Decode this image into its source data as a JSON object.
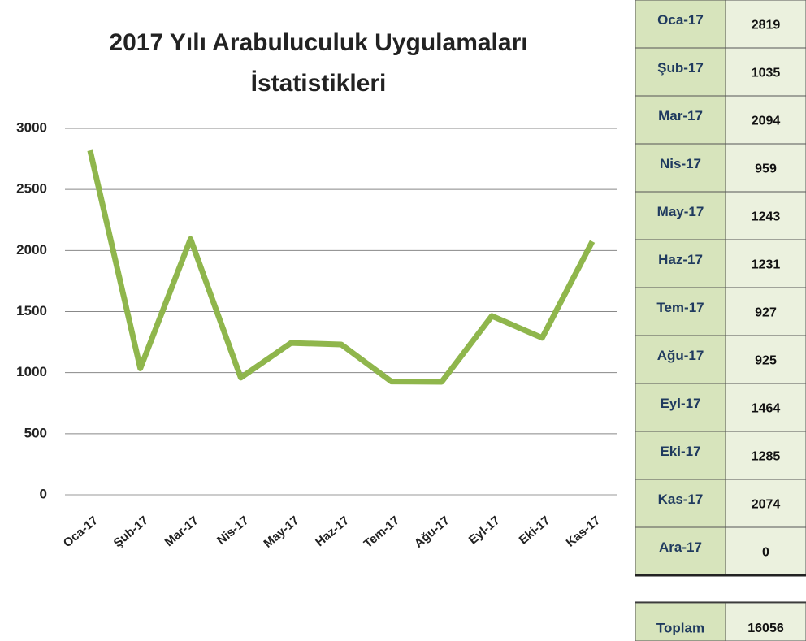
{
  "chart_data": {
    "type": "line",
    "title": [
      "2017 Yılı Arabuluculuk Uygulamaları",
      "İstatistikleri"
    ],
    "categories": [
      "Oca-17",
      "Şub-17",
      "Mar-17",
      "Nis-17",
      "May-17",
      "Haz-17",
      "Tem-17",
      "Ağu-17",
      "Eyl-17",
      "Eki-17",
      "Kas-17"
    ],
    "values": [
      2819,
      1035,
      2094,
      959,
      1243,
      1231,
      927,
      925,
      1464,
      1285,
      2074
    ],
    "color": "#8fb64c",
    "ylim": [
      0,
      3000
    ],
    "yticks": [
      0,
      500,
      1000,
      1500,
      2000,
      2500,
      3000
    ],
    "grid": true
  },
  "table": {
    "rows": [
      [
        "Oca-17",
        2819
      ],
      [
        "Şub-17",
        1035
      ],
      [
        "Mar-17",
        2094
      ],
      [
        "Nis-17",
        959
      ],
      [
        "May-17",
        1243
      ],
      [
        "Haz-17",
        1231
      ],
      [
        "Tem-17",
        927
      ],
      [
        "Ağu-17",
        925
      ],
      [
        "Eyl-17",
        1464
      ],
      [
        "Eki-17",
        1285
      ],
      [
        "Kas-17",
        2074
      ],
      [
        "Ara-17",
        0
      ]
    ],
    "total": [
      "Toplam",
      16056
    ]
  }
}
